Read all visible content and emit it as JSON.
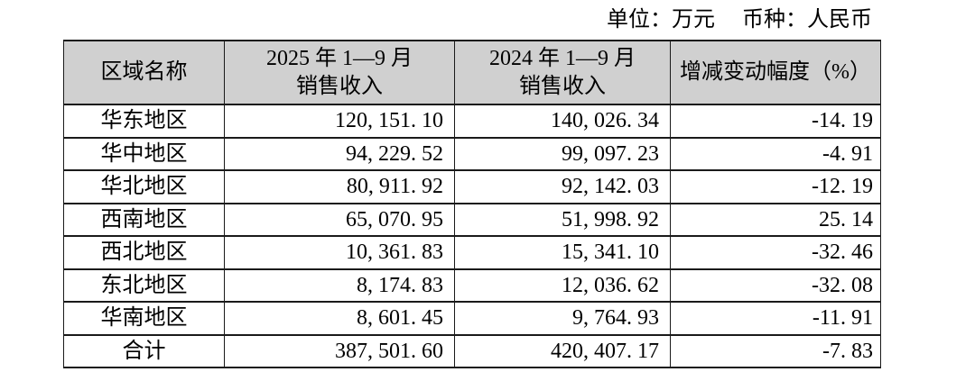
{
  "caption": {
    "unit": "单位：万元",
    "currency": "币种：人民币"
  },
  "table": {
    "columns": [
      "区域名称",
      "2025 年 1—9 月\n销售收入",
      "2024 年 1—9 月\n销售收入",
      "增减变动幅度（%）"
    ],
    "rows": [
      {
        "region": "华东地区",
        "rev_2025": "120,151.10",
        "rev_2024": "140,026.34",
        "change_pct": "-14.19"
      },
      {
        "region": "华中地区",
        "rev_2025": "94,229.52",
        "rev_2024": "99,097.23",
        "change_pct": "-4.91"
      },
      {
        "region": "华北地区",
        "rev_2025": "80,911.92",
        "rev_2024": "92,142.03",
        "change_pct": "-12.19"
      },
      {
        "region": "西南地区",
        "rev_2025": "65,070.95",
        "rev_2024": "51,998.92",
        "change_pct": "25.14"
      },
      {
        "region": "西北地区",
        "rev_2025": "10,361.83",
        "rev_2024": "15,341.10",
        "change_pct": "-32.46"
      },
      {
        "region": "东北地区",
        "rev_2025": "8,174.83",
        "rev_2024": "12,036.62",
        "change_pct": "-32.08"
      },
      {
        "region": "华南地区",
        "rev_2025": "8,601.45",
        "rev_2024": "9,764.93",
        "change_pct": "-11.91"
      },
      {
        "region": "合计",
        "rev_2025": "387,501.60",
        "rev_2024": "420,407.17",
        "change_pct": "-7.83"
      }
    ]
  },
  "colors": {
    "header_bg": "#d0d0d0",
    "border": "#1a1a1a",
    "text": "#000000",
    "page_bg": "#ffffff"
  }
}
